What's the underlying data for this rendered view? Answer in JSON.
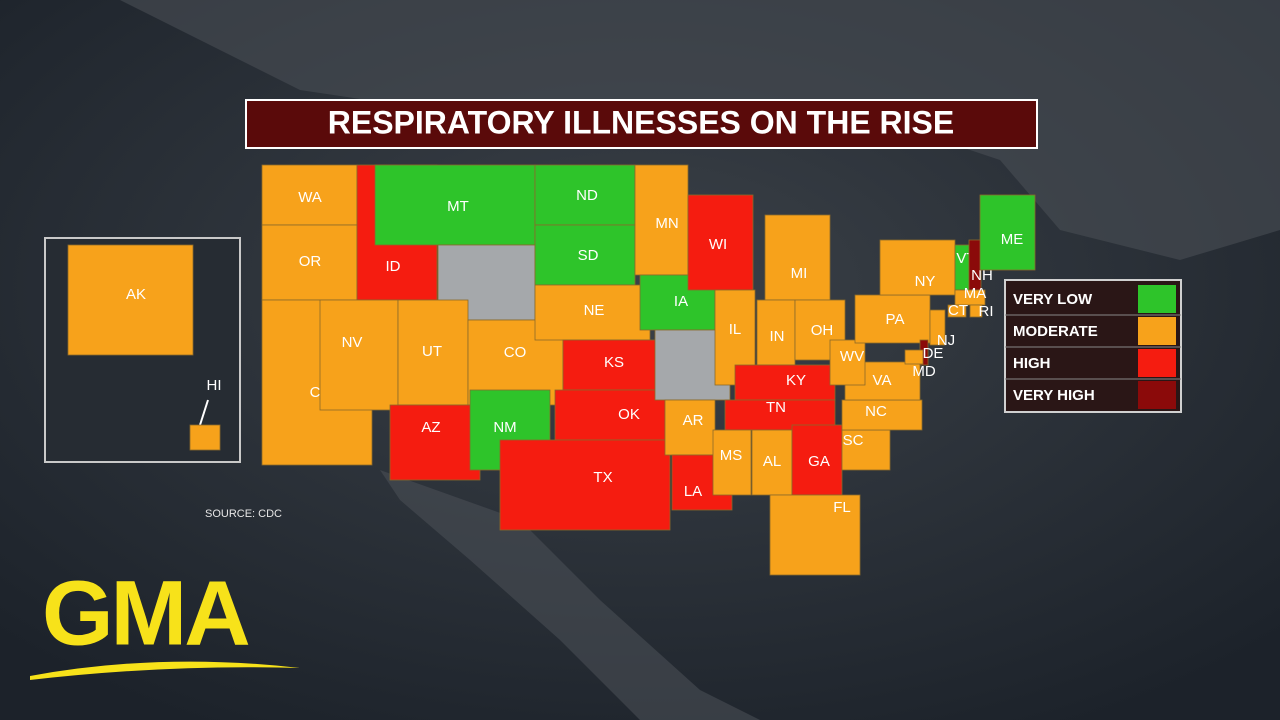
{
  "title": "RESPIRATORY ILLNESSES ON THE RISE",
  "source": "SOURCE: CDC",
  "logo": "GMA",
  "legend": [
    {
      "label": "VERY LOW",
      "color": "#2ec42a"
    },
    {
      "label": "MODERATE",
      "color": "#f7a21b"
    },
    {
      "label": "HIGH",
      "color": "#f51c10"
    },
    {
      "label": "VERY HIGH",
      "color": "#8b0a0a"
    }
  ],
  "states": [
    {
      "label": "WA",
      "color": "#f7a21b"
    },
    {
      "label": "OR",
      "color": "#f7a21b"
    },
    {
      "label": "CA",
      "color": "#f7a21b"
    },
    {
      "label": "ID",
      "color": "#f51c10"
    },
    {
      "label": "NV",
      "color": "#f7a21b"
    },
    {
      "label": "MT",
      "color": "#2ec42a"
    },
    {
      "label": null,
      "color": "#a5a8ab"
    },
    {
      "label": "UT",
      "color": "#f7a21b"
    },
    {
      "label": "CO",
      "color": "#f7a21b"
    },
    {
      "label": "AZ",
      "color": "#f51c10"
    },
    {
      "label": "NM",
      "color": "#2ec42a"
    },
    {
      "label": "ND",
      "color": "#2ec42a"
    },
    {
      "label": "SD",
      "color": "#2ec42a"
    },
    {
      "label": "NE",
      "color": "#f7a21b"
    },
    {
      "label": "KS",
      "color": "#f51c10"
    },
    {
      "label": "OK",
      "color": "#f51c10"
    },
    {
      "label": "TX",
      "color": "#f51c10"
    },
    {
      "label": "MN",
      "color": "#f7a21b"
    },
    {
      "label": "IA",
      "color": "#2ec42a"
    },
    {
      "label": null,
      "color": "#a5a8ab"
    },
    {
      "label": "AR",
      "color": "#f7a21b"
    },
    {
      "label": "LA",
      "color": "#f51c10"
    },
    {
      "label": "WI",
      "color": "#f51c10"
    },
    {
      "label": "IL",
      "color": "#f7a21b"
    },
    {
      "label": "MI",
      "color": "#f7a21b"
    },
    {
      "label": "IN",
      "color": "#f7a21b"
    },
    {
      "label": "OH",
      "color": "#f7a21b"
    },
    {
      "label": "KY",
      "color": "#f51c10"
    },
    {
      "label": "TN",
      "color": "#f51c10"
    },
    {
      "label": "MS",
      "color": "#f7a21b"
    },
    {
      "label": "AL",
      "color": "#f7a21b"
    },
    {
      "label": "GA",
      "color": "#f51c10"
    },
    {
      "label": "FL",
      "color": "#f7a21b"
    },
    {
      "label": "SC",
      "color": "#f7a21b"
    },
    {
      "label": "NC",
      "color": "#f7a21b"
    },
    {
      "label": "VA",
      "color": "#f7a21b"
    },
    {
      "label": "WV",
      "color": "#f7a21b"
    },
    {
      "label": "PA",
      "color": "#f7a21b"
    },
    {
      "label": "NY",
      "color": "#f7a21b"
    },
    {
      "label": "VT",
      "color": "#2ec42a"
    },
    {
      "label": "NH",
      "color": "#8b0a0a"
    },
    {
      "label": "ME",
      "color": "#2ec42a"
    },
    {
      "label": "MA",
      "color": "#f7a21b"
    },
    {
      "label": "CT",
      "color": "#f7a21b"
    },
    {
      "label": "RI",
      "color": "#f7a21b"
    },
    {
      "label": "NJ",
      "color": "#f7a21b"
    },
    {
      "label": "DE",
      "color": "#8b0a0a"
    },
    {
      "label": "MD",
      "color": "#f7a21b"
    },
    {
      "label": "AK",
      "color": "#f7a21b"
    },
    {
      "label": "HI",
      "color": "#f7a21b"
    }
  ]
}
